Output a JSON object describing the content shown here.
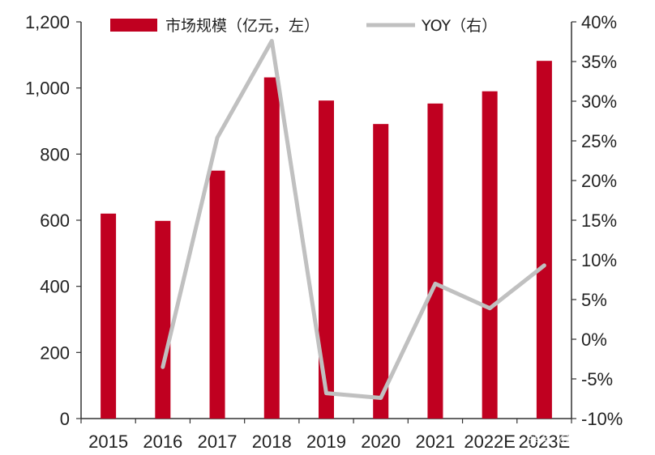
{
  "chart_data": {
    "type": "bar",
    "categories": [
      "2015",
      "2016",
      "2017",
      "2018",
      "2019",
      "2020",
      "2021",
      "2022E",
      "2023E"
    ],
    "series": [
      {
        "name": "市场规模（亿元，左）",
        "type": "bar",
        "axis": "left",
        "color": "#c00020",
        "values": [
          620,
          598,
          750,
          1032,
          962,
          891,
          953,
          990,
          1082
        ]
      },
      {
        "name": "YOY（右）",
        "type": "line",
        "axis": "right",
        "color": "#c0c0c0",
        "values": [
          null,
          -3.5,
          25.4,
          37.6,
          -6.8,
          -7.4,
          7.0,
          3.9,
          9.3
        ]
      }
    ],
    "y_left": {
      "min": 0,
      "max": 1200,
      "ticks": [
        0,
        200,
        400,
        600,
        800,
        1000,
        1200
      ],
      "tick_labels": [
        "0",
        "200",
        "400",
        "600",
        "800",
        "1,000",
        "1,200"
      ]
    },
    "y_right": {
      "min": -10,
      "max": 40,
      "ticks": [
        -10,
        -5,
        0,
        5,
        10,
        15,
        20,
        25,
        30,
        35,
        40
      ],
      "tick_labels": [
        "-10%",
        "-5%",
        "0%",
        "5%",
        "10%",
        "15%",
        "20%",
        "25%",
        "30%",
        "35%",
        "40%"
      ]
    },
    "legend": {
      "placement": "top",
      "bar_label": "市场规模（亿元，左）",
      "line_label": "YOY（右）"
    },
    "grid": false
  },
  "watermark": {
    "text": "头条 @星空财富"
  }
}
